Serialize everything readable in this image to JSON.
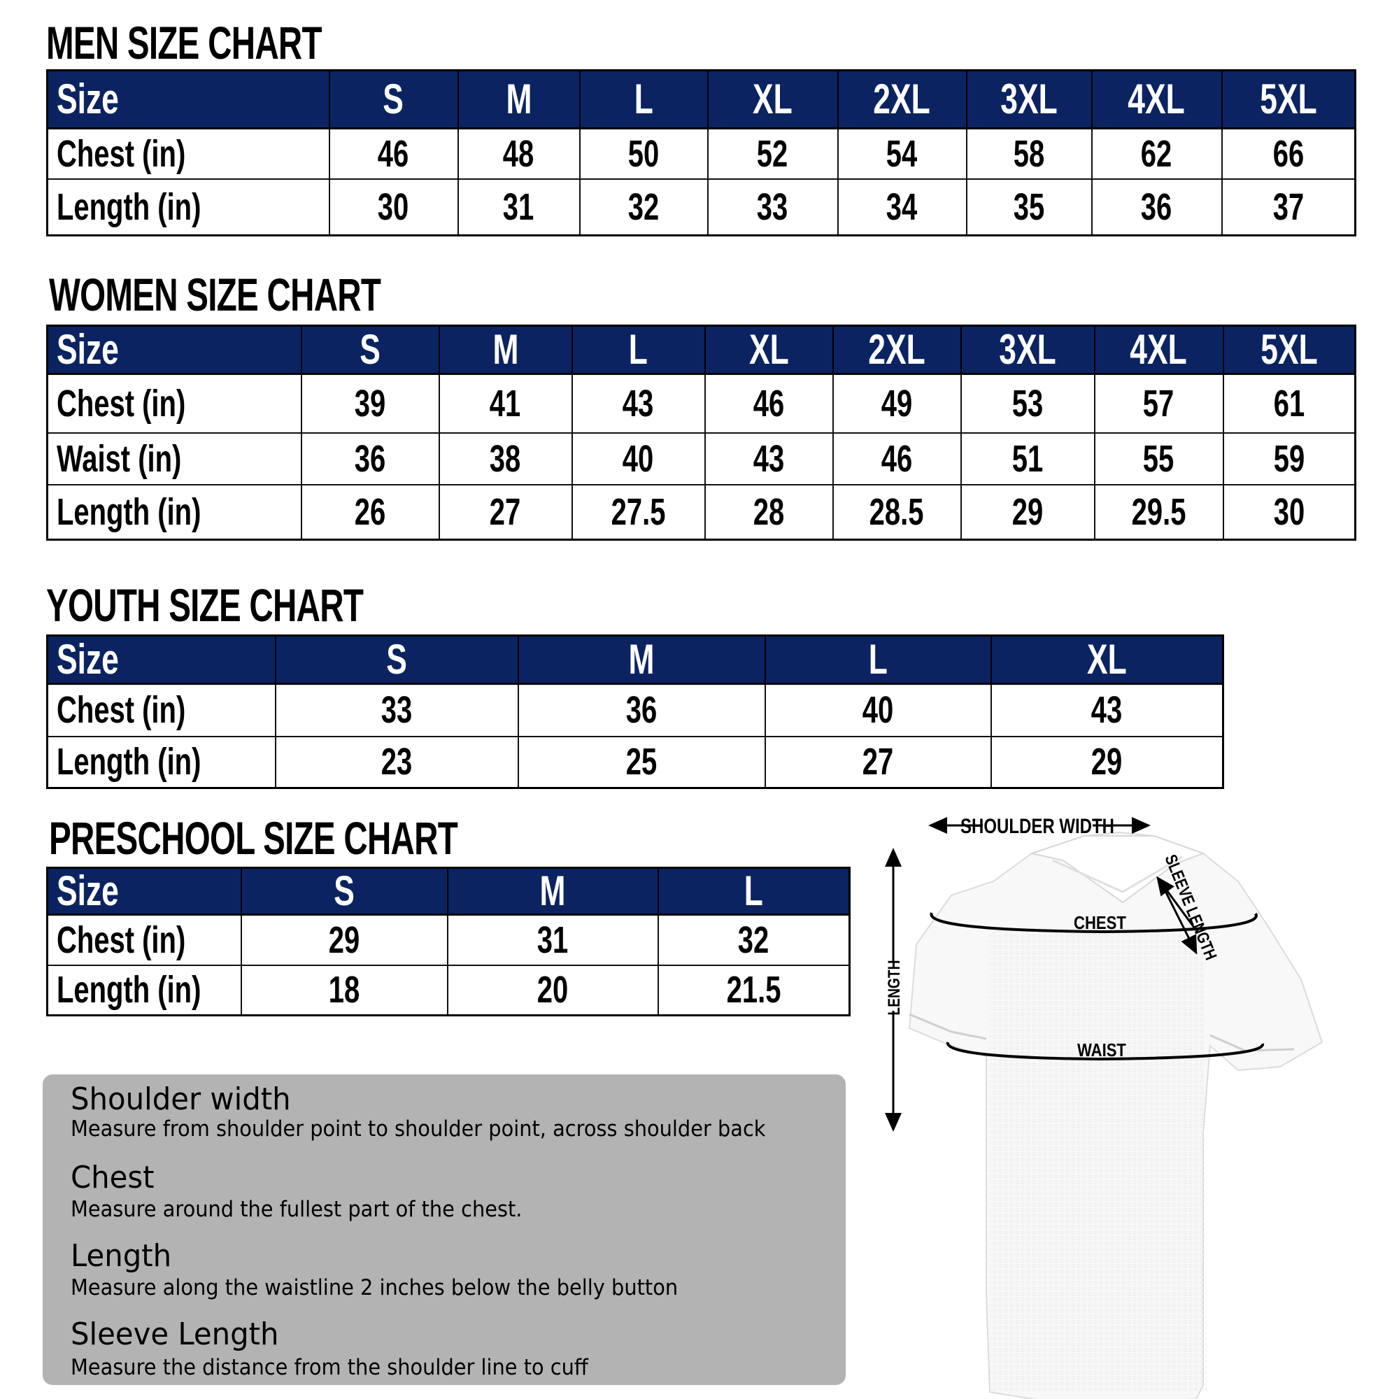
{
  "men": {
    "title": "MEN SIZE CHART",
    "header": [
      "Size",
      "S",
      "M",
      "L",
      "XL",
      "2XL",
      "3XL",
      "4XL",
      "5XL"
    ],
    "rows": [
      [
        "Chest (in)",
        "46",
        "48",
        "50",
        "52",
        "54",
        "58",
        "62",
        "66"
      ],
      [
        "Length (in)",
        "30",
        "31",
        "32",
        "33",
        "34",
        "35",
        "36",
        "37"
      ]
    ]
  },
  "women": {
    "title": "WOMEN SIZE CHART",
    "header": [
      "Size",
      "S",
      "M",
      "L",
      "XL",
      "2XL",
      "3XL",
      "4XL",
      "5XL"
    ],
    "rows": [
      [
        "Chest (in)",
        "39",
        "41",
        "43",
        "46",
        "49",
        "53",
        "57",
        "61"
      ],
      [
        "Waist (in)",
        "36",
        "38",
        "40",
        "43",
        "46",
        "51",
        "55",
        "59"
      ],
      [
        "Length (in)",
        "26",
        "27",
        "27.5",
        "28",
        "28.5",
        "29",
        "29.5",
        "30"
      ]
    ]
  },
  "youth": {
    "title": "YOUTH SIZE CHART",
    "header": [
      "Size",
      "S",
      "M",
      "L",
      "XL"
    ],
    "rows": [
      [
        "Chest (in)",
        "33",
        "36",
        "40",
        "43"
      ],
      [
        "Length (in)",
        "23",
        "25",
        "27",
        "29"
      ]
    ]
  },
  "preschool": {
    "title": "PRESCHOOL SIZE CHART",
    "header": [
      "Size",
      "S",
      "M",
      "L"
    ],
    "rows": [
      [
        "Chest (in)",
        "29",
        "31",
        "32"
      ],
      [
        "Length (in)",
        "18",
        "20",
        "21.5"
      ]
    ]
  },
  "guide": [
    {
      "heading": "Shoulder width",
      "text": "Measure from shoulder point to shoulder point, across shoulder back"
    },
    {
      "heading": "Chest",
      "text": "Measure around the fullest part of the chest."
    },
    {
      "heading": "Length",
      "text": "Measure along the waistline 2 inches below the belly button"
    },
    {
      "heading": "Sleeve Length",
      "text": "Measure the distance from the shoulder line to cuff"
    }
  ],
  "diagram": {
    "shoulder_width": "SHOULDER WIDTH",
    "sleeve_length": "SLEEVE LENGTH",
    "length": "LENGTH",
    "chest": "CHEST",
    "waist": "WAIST"
  },
  "colors": {
    "header_bg": "#0b2361",
    "guide_bg": "#b3b3b3"
  }
}
